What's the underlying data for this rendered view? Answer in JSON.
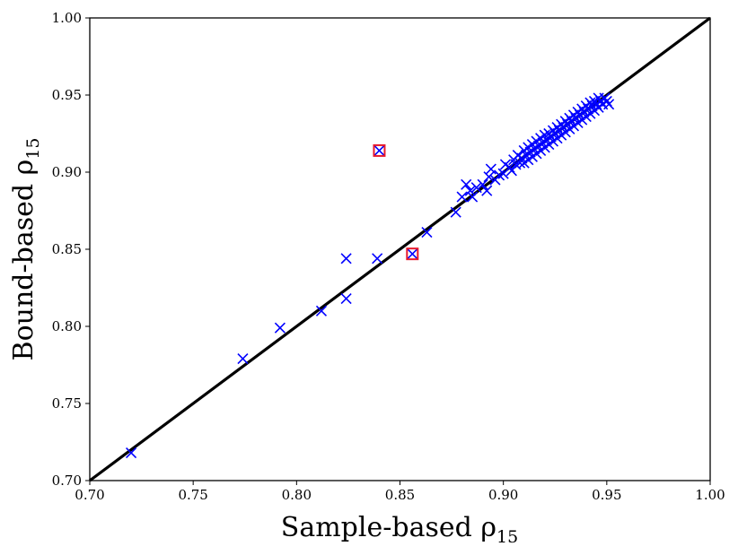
{
  "chart_data": {
    "type": "scatter",
    "xlabel": "Sample-based ρ",
    "xlabel_sub": "15",
    "ylabel": "Bound-based ρ",
    "ylabel_sub": "15",
    "xlim": [
      0.7,
      1.0
    ],
    "ylim": [
      0.7,
      1.0
    ],
    "grid": false,
    "x_ticks": [
      "0.70",
      "0.75",
      "0.80",
      "0.85",
      "0.90",
      "0.95",
      "1.00"
    ],
    "y_ticks": [
      "0.70",
      "0.75",
      "0.80",
      "0.85",
      "0.90",
      "0.95",
      "1.00"
    ],
    "reference_line": {
      "x": [
        0.7,
        1.0
      ],
      "y": [
        0.7,
        1.0
      ],
      "color": "#000000"
    },
    "series": [
      {
        "marker": "x",
        "color": "#0000ff",
        "points": [
          [
            0.72,
            0.718
          ],
          [
            0.774,
            0.779
          ],
          [
            0.792,
            0.799
          ],
          [
            0.812,
            0.81
          ],
          [
            0.824,
            0.844
          ],
          [
            0.824,
            0.818
          ],
          [
            0.839,
            0.844
          ],
          [
            0.84,
            0.914
          ],
          [
            0.856,
            0.847
          ],
          [
            0.863,
            0.861
          ],
          [
            0.877,
            0.874
          ],
          [
            0.88,
            0.884
          ],
          [
            0.882,
            0.892
          ],
          [
            0.884,
            0.888
          ],
          [
            0.885,
            0.884
          ],
          [
            0.887,
            0.89
          ],
          [
            0.89,
            0.892
          ],
          [
            0.892,
            0.888
          ],
          [
            0.893,
            0.897
          ],
          [
            0.894,
            0.902
          ],
          [
            0.896,
            0.895
          ],
          [
            0.898,
            0.898
          ],
          [
            0.9,
            0.899
          ],
          [
            0.901,
            0.905
          ],
          [
            0.903,
            0.903
          ],
          [
            0.904,
            0.901
          ],
          [
            0.905,
            0.908
          ],
          [
            0.906,
            0.905
          ],
          [
            0.907,
            0.911
          ],
          [
            0.908,
            0.906
          ],
          [
            0.909,
            0.909
          ],
          [
            0.91,
            0.914
          ],
          [
            0.91,
            0.906
          ],
          [
            0.911,
            0.911
          ],
          [
            0.912,
            0.916
          ],
          [
            0.912,
            0.908
          ],
          [
            0.913,
            0.913
          ],
          [
            0.914,
            0.918
          ],
          [
            0.914,
            0.91
          ],
          [
            0.915,
            0.915
          ],
          [
            0.916,
            0.92
          ],
          [
            0.916,
            0.912
          ],
          [
            0.917,
            0.917
          ],
          [
            0.918,
            0.922
          ],
          [
            0.918,
            0.914
          ],
          [
            0.919,
            0.919
          ],
          [
            0.92,
            0.924
          ],
          [
            0.92,
            0.916
          ],
          [
            0.921,
            0.921
          ],
          [
            0.922,
            0.925
          ],
          [
            0.922,
            0.918
          ],
          [
            0.923,
            0.923
          ],
          [
            0.924,
            0.927
          ],
          [
            0.924,
            0.92
          ],
          [
            0.925,
            0.925
          ],
          [
            0.926,
            0.929
          ],
          [
            0.926,
            0.922
          ],
          [
            0.927,
            0.927
          ],
          [
            0.928,
            0.931
          ],
          [
            0.928,
            0.924
          ],
          [
            0.929,
            0.929
          ],
          [
            0.93,
            0.933
          ],
          [
            0.93,
            0.926
          ],
          [
            0.931,
            0.931
          ],
          [
            0.932,
            0.935
          ],
          [
            0.932,
            0.928
          ],
          [
            0.933,
            0.933
          ],
          [
            0.934,
            0.937
          ],
          [
            0.934,
            0.93
          ],
          [
            0.935,
            0.935
          ],
          [
            0.936,
            0.939
          ],
          [
            0.936,
            0.932
          ],
          [
            0.937,
            0.937
          ],
          [
            0.938,
            0.941
          ],
          [
            0.938,
            0.934
          ],
          [
            0.939,
            0.939
          ],
          [
            0.94,
            0.943
          ],
          [
            0.94,
            0.936
          ],
          [
            0.941,
            0.941
          ],
          [
            0.942,
            0.945
          ],
          [
            0.942,
            0.938
          ],
          [
            0.943,
            0.943
          ],
          [
            0.944,
            0.946
          ],
          [
            0.944,
            0.94
          ],
          [
            0.945,
            0.944
          ],
          [
            0.946,
            0.948
          ],
          [
            0.946,
            0.942
          ],
          [
            0.947,
            0.946
          ],
          [
            0.948,
            0.944
          ],
          [
            0.949,
            0.948
          ],
          [
            0.95,
            0.946
          ],
          [
            0.951,
            0.944
          ]
        ]
      },
      {
        "marker": "square",
        "color": "#e8192c",
        "points": [
          [
            0.84,
            0.914
          ],
          [
            0.856,
            0.847
          ]
        ]
      }
    ]
  }
}
